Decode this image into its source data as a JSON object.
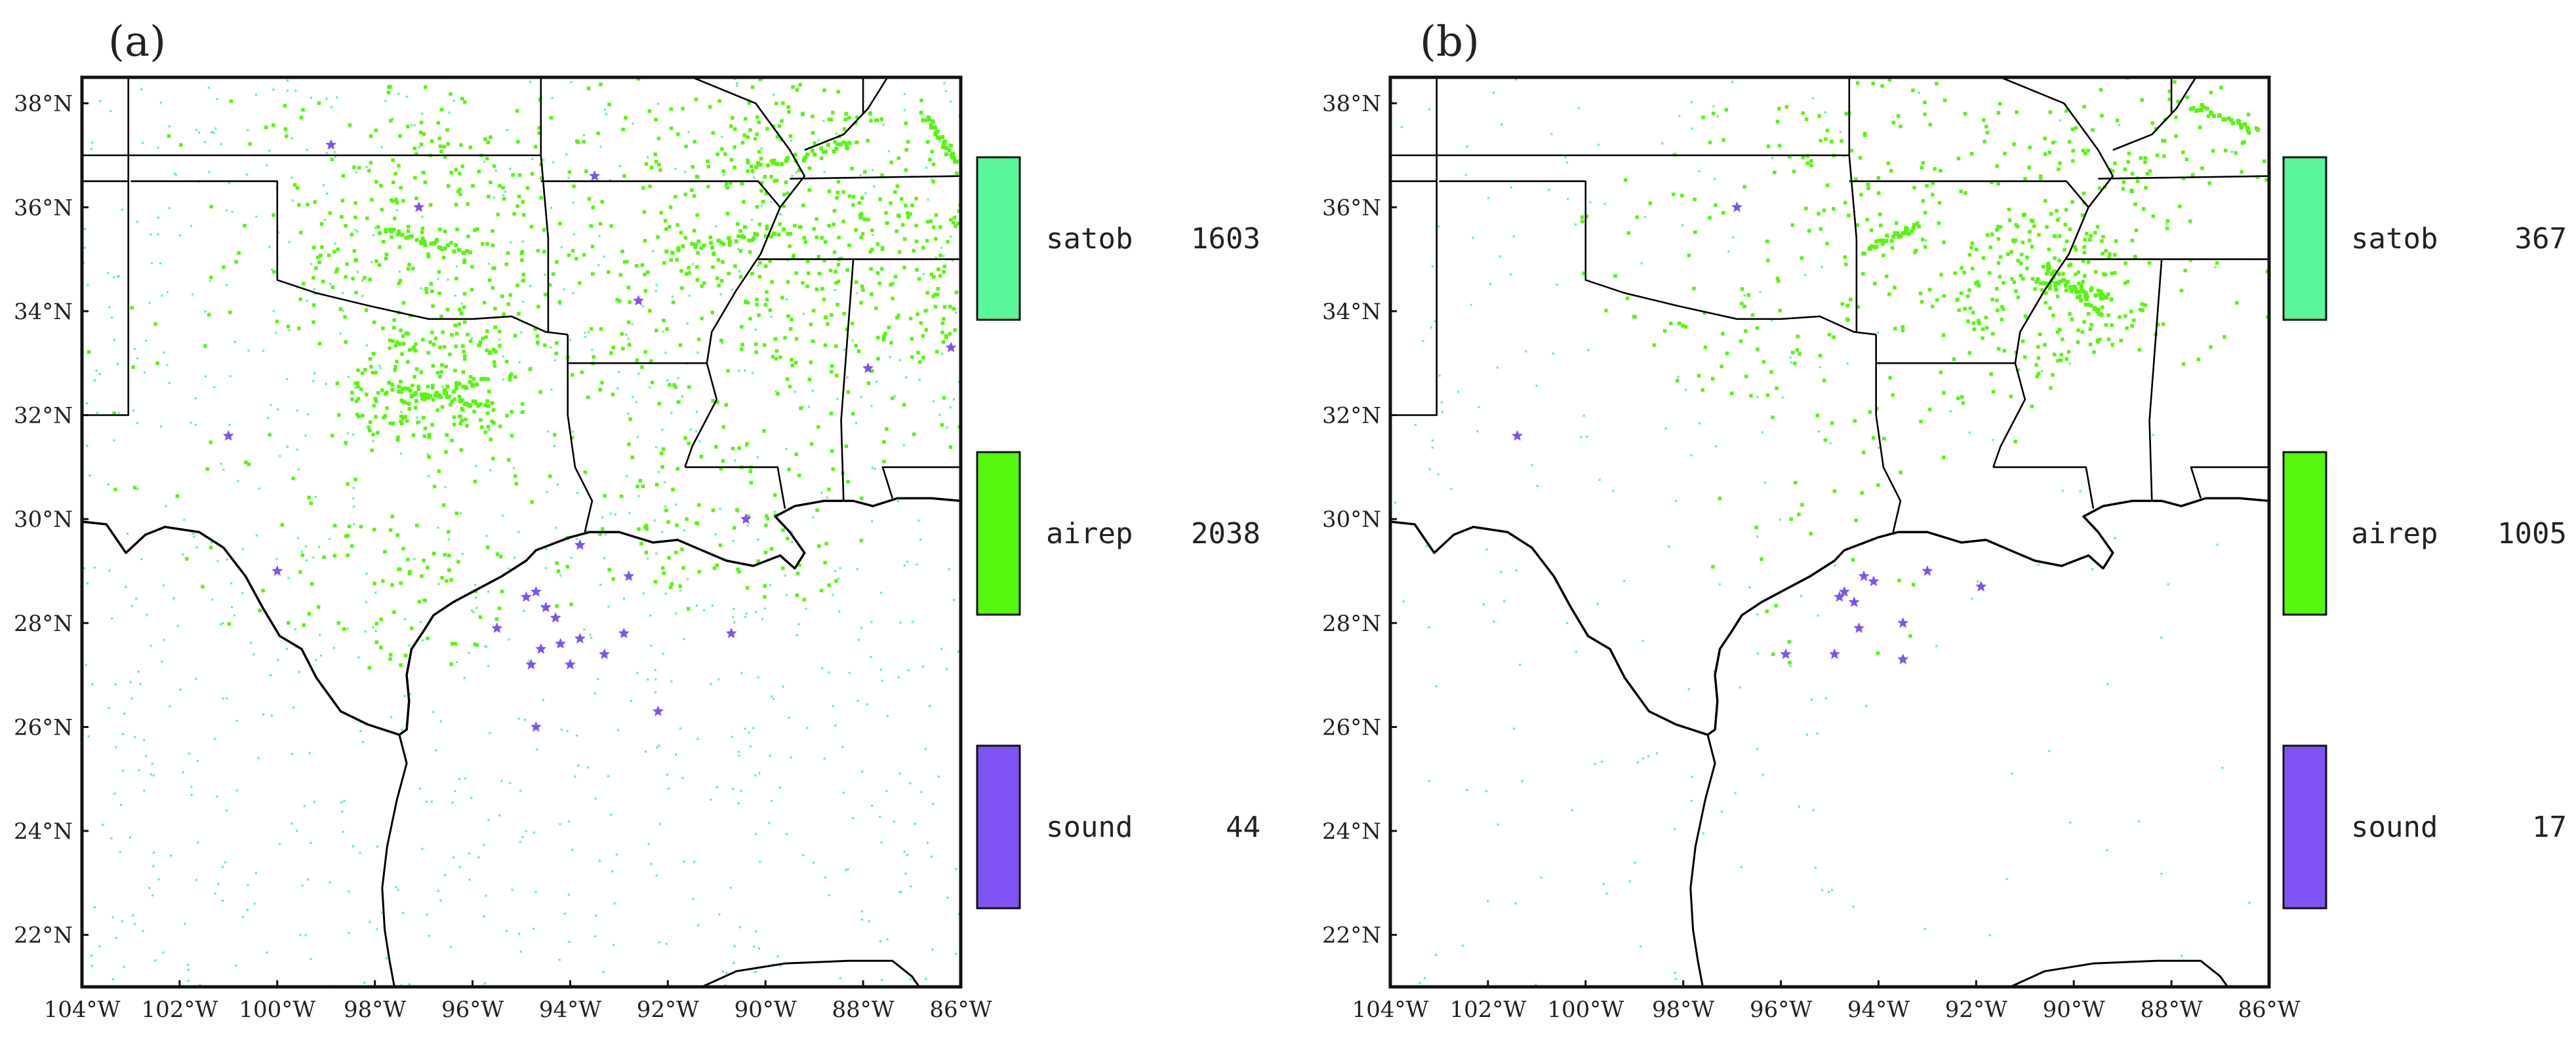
{
  "colors": {
    "satob": "#57F79A",
    "airep": "#55F70A",
    "sound": "#7F52F4",
    "border": "#111111",
    "coast": "#000000"
  },
  "map": {
    "lon_range": [
      -104,
      -86
    ],
    "lat_range": [
      21,
      38.5
    ],
    "x_ticks": [
      "104°W",
      "102°W",
      "100°W",
      "98°W",
      "96°W",
      "94°W",
      "92°W",
      "90°W",
      "88°W",
      "86°W"
    ],
    "y_ticks": [
      "38°N",
      "36°N",
      "34°N",
      "32°N",
      "30°N",
      "28°N",
      "26°N",
      "24°N",
      "22°N"
    ]
  },
  "panels": [
    {
      "label": "(a)",
      "legend": [
        {
          "name": "satob",
          "count": "1603",
          "color_key": "satob"
        },
        {
          "name": "airep",
          "count": "2038",
          "color_key": "airep"
        },
        {
          "name": "sound",
          "count": "44",
          "color_key": "sound"
        }
      ]
    },
    {
      "label": "(b)",
      "legend": [
        {
          "name": "satob",
          "count": "367",
          "color_key": "satob"
        },
        {
          "name": "airep",
          "count": "1005",
          "color_key": "airep"
        },
        {
          "name": "sound",
          "count": "17",
          "color_key": "sound"
        }
      ]
    }
  ]
}
